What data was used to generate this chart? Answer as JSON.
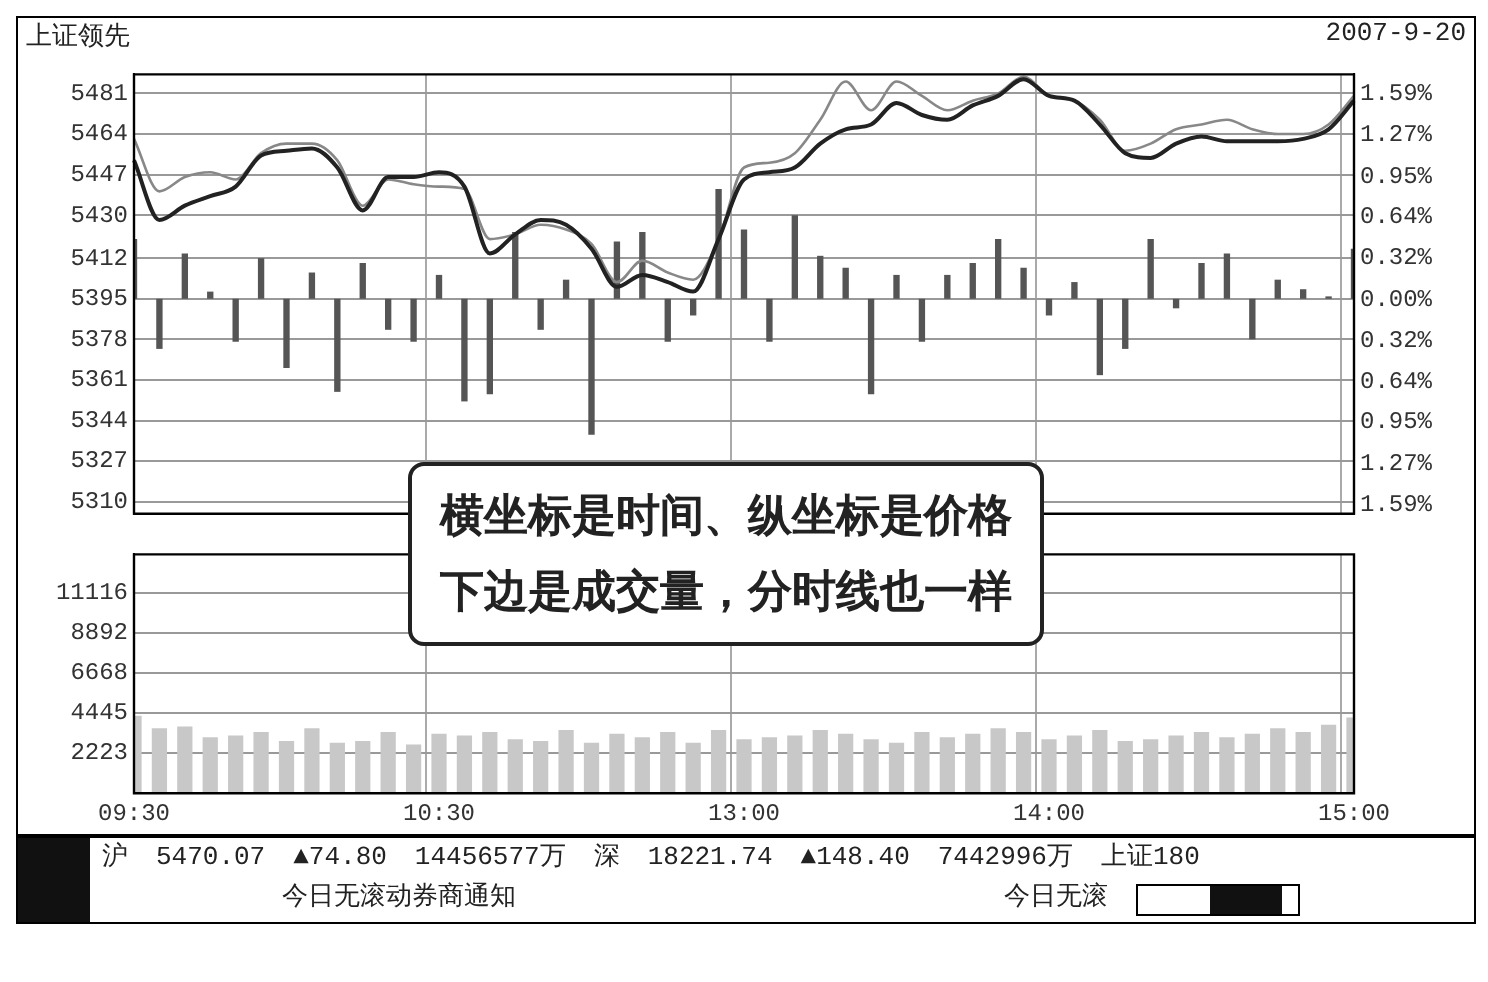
{
  "chart_data": [
    {
      "type": "line",
      "title": "上证领先",
      "subtitle": "2007-9-20",
      "categories": [
        null,
        null,
        null,
        null,
        null,
        null,
        null,
        null,
        null,
        null,
        null,
        null,
        null,
        null,
        null,
        null,
        null,
        null,
        null,
        null,
        null,
        null,
        null,
        null,
        null,
        null,
        null,
        null,
        null,
        null,
        null,
        null,
        null,
        null,
        null,
        null,
        null,
        null,
        null,
        null,
        null,
        null,
        null,
        null,
        null,
        null,
        null,
        null,
        null
      ],
      "ylim": [
        5305,
        5489
      ],
      "yticks": [
        5481,
        5464,
        5447,
        5430,
        5412,
        5395,
        5378,
        5361,
        5344,
        5327,
        5310
      ],
      "y2lim": [
        -1.66,
        1.74
      ],
      "y2ticks": [
        {
          "value": 1.59,
          "label": "1.59%"
        },
        {
          "value": 1.27,
          "label": "1.27%"
        },
        {
          "value": 0.95,
          "label": "0.95%"
        },
        {
          "value": 0.64,
          "label": "0.64%"
        },
        {
          "value": 0.32,
          "label": "0.32%"
        },
        {
          "value": 0,
          "label": "0.00%"
        },
        {
          "value": -0.32,
          "label": "0.32%"
        },
        {
          "value": -0.64,
          "label": "0.64%"
        },
        {
          "value": -0.95,
          "label": "0.95%"
        },
        {
          "value": -1.27,
          "label": "1.27%"
        },
        {
          "value": -1.59,
          "label": "1.59%"
        }
      ],
      "grid": true,
      "legend": false,
      "tick_labels": "y",
      "annotations": [
        "横坐标是时间、纵坐标是价格",
        "下边是成交量，分时线也一样"
      ],
      "series": [
        {
          "type": "line",
          "color": "#222222",
          "values": [
            5453,
            5428,
            5434,
            5438,
            5442,
            5455,
            5457,
            5458,
            5450,
            5432,
            5446,
            5446,
            5448,
            5442,
            5414,
            5422,
            5428,
            5426,
            5416,
            5400,
            5405,
            5402,
            5398,
            5420,
            5445,
            5448,
            5450,
            5460,
            5466,
            5468,
            5477,
            5472,
            5470,
            5476,
            5480,
            5487,
            5480,
            5478,
            5468,
            5456,
            5454,
            5460,
            5463,
            5461,
            5461,
            5461,
            5462,
            5466,
            5478
          ]
        },
        {
          "type": "line",
          "color": "#888888",
          "values": [
            5462,
            5440,
            5446,
            5448,
            5445,
            5456,
            5460,
            5460,
            5453,
            5434,
            5445,
            5443,
            5442,
            5441,
            5420,
            5422,
            5426,
            5424,
            5418,
            5402,
            5411,
            5406,
            5403,
            5420,
            5450,
            5452,
            5456,
            5470,
            5486,
            5474,
            5486,
            5480,
            5474,
            5478,
            5481,
            5488,
            5480,
            5478,
            5470,
            5457,
            5460,
            5466,
            5468,
            5470,
            5466,
            5464,
            5464,
            5468,
            5480
          ]
        },
        {
          "type": "bar",
          "color": "#555555",
          "base": [
            5395,
            5395,
            5395,
            5395,
            5395,
            5395,
            5395,
            5395,
            5395,
            5395,
            5395,
            5395,
            5395,
            5395,
            5395,
            5395,
            5395,
            5395,
            5395,
            5395,
            5395,
            5395,
            5395,
            5395,
            5395,
            5395,
            5395,
            5395,
            5395,
            5395,
            5395,
            5395,
            5395,
            5395,
            5395,
            5395,
            5395,
            5395,
            5395,
            5395,
            5395,
            5395,
            5395,
            5395,
            5395,
            5395,
            5395,
            5395,
            5395
          ],
          "values": [
            25,
            -21,
            19,
            3,
            -18,
            17,
            -29,
            11,
            -39,
            15,
            -13,
            -18,
            10,
            -43,
            -40,
            28,
            -13,
            8,
            -57,
            24,
            28,
            -18,
            -7,
            46,
            29,
            -18,
            35,
            18,
            13,
            -40,
            10,
            -18,
            10,
            15,
            25,
            13,
            -7,
            7,
            -32,
            -21,
            25,
            -4,
            15,
            19,
            -17,
            8,
            4,
            1,
            21
          ]
        }
      ]
    },
    {
      "type": "bar",
      "color": "#c8c8c8",
      "categories": [
        "09:30",
        null,
        null,
        null,
        null,
        null,
        null,
        null,
        null,
        null,
        null,
        null,
        "10:30",
        null,
        null,
        null,
        null,
        null,
        null,
        null,
        null,
        null,
        null,
        null,
        "13:00",
        null,
        null,
        null,
        null,
        null,
        null,
        null,
        null,
        null,
        null,
        null,
        "14:00",
        null,
        null,
        null,
        null,
        null,
        null,
        null,
        null,
        null,
        null,
        null,
        "15:00"
      ],
      "values": [
        4300,
        3600,
        3700,
        3100,
        3200,
        3400,
        2900,
        3600,
        2800,
        2900,
        3400,
        2700,
        3300,
        3200,
        3400,
        3000,
        2900,
        3500,
        2800,
        3300,
        3100,
        3400,
        2800,
        3500,
        3000,
        3100,
        3200,
        3500,
        3300,
        3000,
        2800,
        3400,
        3100,
        3300,
        3600,
        3400,
        3000,
        3200,
        3500,
        2900,
        3000,
        3200,
        3400,
        3100,
        3300,
        3600,
        3400,
        3800,
        4200
      ],
      "ylim": [
        0,
        13250
      ],
      "yticks": [
        2223,
        4445,
        6668,
        8892,
        11116
      ],
      "grid": true,
      "legend": false,
      "annotations": [
        "沪",
        "5470.07",
        "▲74.80",
        "14456577万",
        "深",
        "18221.74",
        "▲148.40",
        "7442996万",
        "上证180",
        "今日无滚动券商通知",
        "今日无滚"
      ]
    }
  ]
}
